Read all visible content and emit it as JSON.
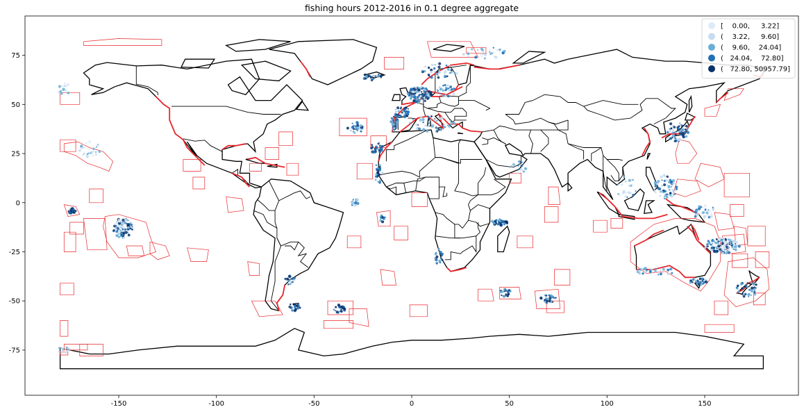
{
  "title": "fishing hours 2012-2016 in 0.1 degree aggregate",
  "chart_data": {
    "type": "map",
    "title": "fishing hours 2012-2016 in 0.1 degree aggregate",
    "xlabel": "",
    "ylabel": "",
    "xlim": [
      -198,
      198
    ],
    "ylim": [
      -98,
      95
    ],
    "x_ticks": [
      -150,
      -100,
      -50,
      0,
      50,
      100,
      150
    ],
    "y_ticks": [
      75,
      50,
      25,
      0,
      -25,
      -50,
      -75
    ],
    "grid": false,
    "legend_position": "top-right",
    "legend": [
      {
        "label": "[    0.00,     3.22]",
        "color": "#deebf7"
      },
      {
        "label": "(    3.22,     9.60]",
        "color": "#c6dbef"
      },
      {
        "label": "(    9.60,    24.04]",
        "color": "#6baed6"
      },
      {
        "label": "(   24.04,    72.80]",
        "color": "#2171b5"
      },
      {
        "label": "(   72.80, 50957.79]",
        "color": "#08306b"
      }
    ],
    "colors": {
      "coastline": "#000000",
      "eez_boundaries": "#e8262b"
    }
  }
}
